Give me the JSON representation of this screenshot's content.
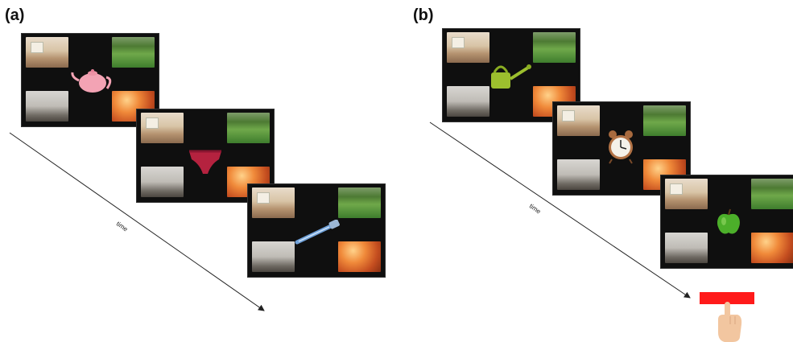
{
  "panel_a": {
    "label": "(a)",
    "time_label": "time"
  },
  "panel_b": {
    "label": "(b)",
    "time_label": "time"
  },
  "scene_thumbnails": [
    "kitchen",
    "garden",
    "bathroom",
    "bedroom"
  ],
  "panel_a_objects": [
    "teapot",
    "underwear",
    "razor"
  ],
  "panel_b_objects": [
    "watering-can",
    "alarm-clock",
    "green-apple"
  ],
  "colors": {
    "screen": "#0f0f0f",
    "response_bar": "#ff1a1a",
    "hand": "#f2c6a0"
  }
}
